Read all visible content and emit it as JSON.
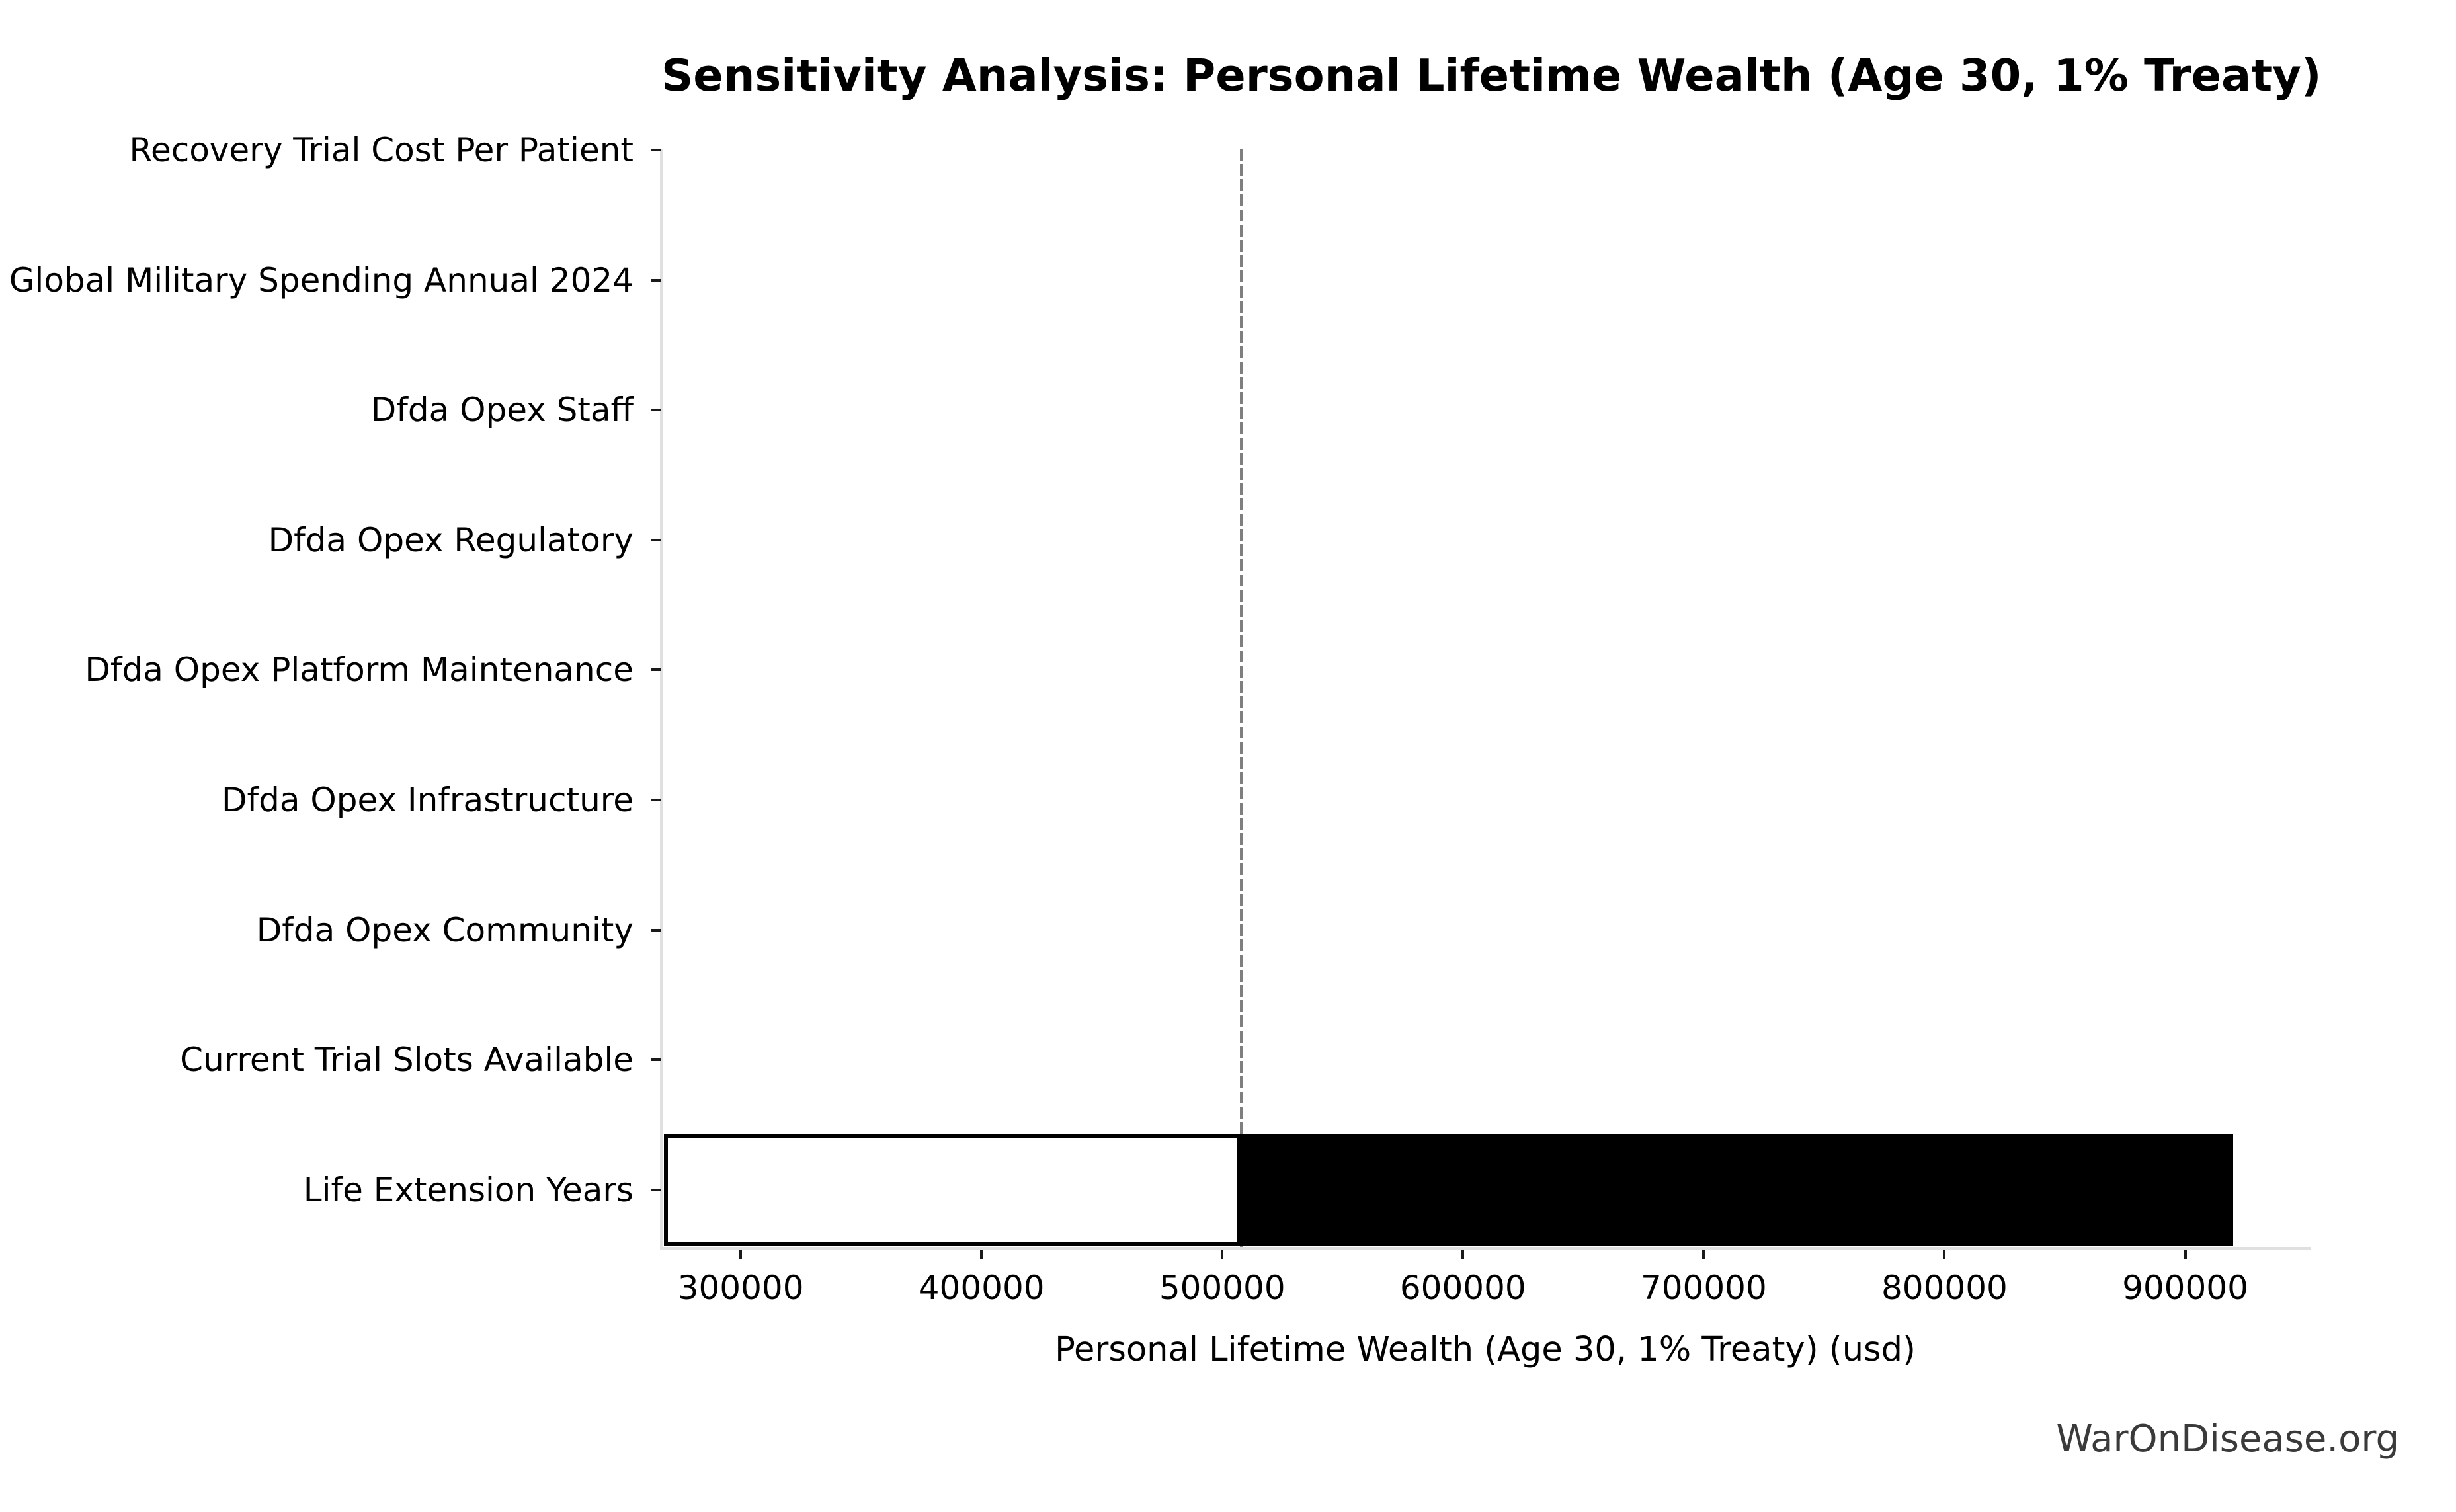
{
  "title": "Sensitivity Analysis: Personal Lifetime Wealth (Age 30, 1% Treaty)",
  "watermark": "WarOnDisease.org",
  "chart_data": {
    "type": "bar",
    "orientation": "horizontal",
    "subtype": "tornado-sensitivity",
    "title": "Sensitivity Analysis: Personal Lifetime Wealth (Age 30, 1% Treaty)",
    "xlabel": "Personal Lifetime Wealth (Age 30, 1% Treaty) (usd)",
    "ylabel": "",
    "categories": [
      "Recovery Trial Cost Per Patient",
      "Global Military Spending Annual 2024",
      "Dfda Opex Staff",
      "Dfda Opex Regulatory",
      "Dfda Opex Platform Maintenance",
      "Dfda Opex Infrastructure",
      "Dfda Opex Community",
      "Current Trial Slots Available",
      "Life Extension Years"
    ],
    "x_tick_values": [
      300000,
      400000,
      500000,
      600000,
      700000,
      800000,
      900000
    ],
    "x_tick_labels": [
      "300000",
      "400000",
      "500000",
      "600000",
      "700000",
      "800000",
      "900000"
    ],
    "xlim": [
      267000,
      951500
    ],
    "baseline_value": 508000,
    "bars": [
      {
        "category": "Recovery Trial Cost Per Patient",
        "low": null,
        "base": 508000,
        "high": null,
        "visible": false
      },
      {
        "category": "Global Military Spending Annual 2024",
        "low": null,
        "base": 508000,
        "high": null,
        "visible": false
      },
      {
        "category": "Dfda Opex Staff",
        "low": null,
        "base": 508000,
        "high": null,
        "visible": false
      },
      {
        "category": "Dfda Opex Regulatory",
        "low": null,
        "base": 508000,
        "high": null,
        "visible": false
      },
      {
        "category": "Dfda Opex Platform Maintenance",
        "low": null,
        "base": 508000,
        "high": null,
        "visible": false
      },
      {
        "category": "Dfda Opex Infrastructure",
        "low": null,
        "base": 508000,
        "high": null,
        "visible": false
      },
      {
        "category": "Dfda Opex Community",
        "low": null,
        "base": 508000,
        "high": null,
        "visible": false
      },
      {
        "category": "Current Trial Slots Available",
        "low": null,
        "base": 508000,
        "high": null,
        "visible": false
      },
      {
        "category": "Life Extension Years",
        "low": 268000,
        "base": 508000,
        "high": 920000,
        "visible": true
      }
    ],
    "colors": {
      "low_bar_fill": "#ffffff",
      "low_bar_edge": "#000000",
      "high_bar_fill": "#000000",
      "baseline_line": "#7f7f7f",
      "spine": "#e0e0e0",
      "tick": "#1a1a1a",
      "text": "#000000",
      "watermark_text": "#3a3a3a",
      "background": "#ffffff"
    },
    "grid": false,
    "legend": "none"
  }
}
